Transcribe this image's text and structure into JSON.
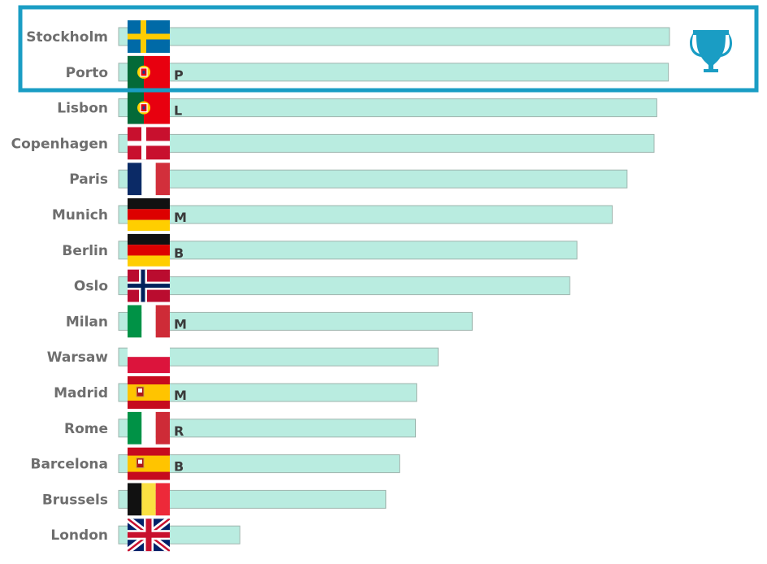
{
  "chart_data": {
    "type": "bar",
    "orientation": "horizontal",
    "categories": [
      "Stockholm",
      "Porto",
      "Lisbon",
      "Copenhagen",
      "Paris",
      "Munich",
      "Berlin",
      "Oslo",
      "Milan",
      "Warsaw",
      "Madrid",
      "Rome",
      "Barcelona",
      "Brussels",
      "London"
    ],
    "values": [
      100,
      99.8,
      97.7,
      97.2,
      92.3,
      89.6,
      83.2,
      81.9,
      64.2,
      58.0,
      54.1,
      53.9,
      51.0,
      48.5,
      22.0
    ],
    "bar_letters": [
      "",
      "P",
      "L",
      "",
      "",
      "M",
      "B",
      "",
      "M",
      "",
      "M",
      "R",
      "B",
      "",
      ""
    ],
    "flags": [
      "sweden",
      "portugal",
      "portugal",
      "denmark",
      "france",
      "germany",
      "germany",
      "norway",
      "italy",
      "poland",
      "spain",
      "italy",
      "spain",
      "belgium",
      "united-kingdom"
    ],
    "highlight": {
      "categories": [
        "Stockholm",
        "Porto"
      ],
      "icon": "trophy-icon",
      "color": "#1a9dc4"
    },
    "bar_color": "#b9ece0",
    "xlim": [
      0,
      100
    ],
    "grid": false,
    "legend": "none"
  }
}
